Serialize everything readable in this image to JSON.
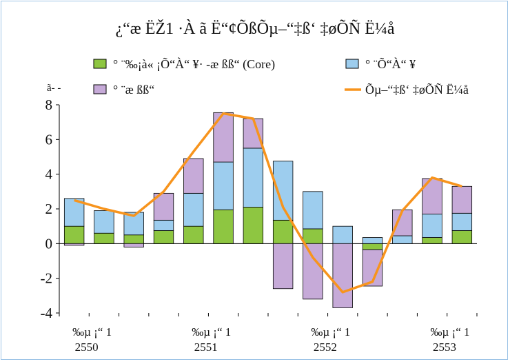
{
  "chart_data": {
    "type": "bar",
    "stacked": true,
    "title": "¿“æ ËŽ1 ·À ã Ë“¢ÕßÕµ–“‡ß‘ ‡øÕÑ Ë¼å",
    "ylabel": "ã- -",
    "ylim": [
      -4,
      8
    ],
    "yticks": [
      8,
      6,
      4,
      2,
      0,
      -2,
      -4
    ],
    "grid": false,
    "legend_position": "top",
    "x_groups": [
      {
        "quarter_label": "‰µ ¡“ 1",
        "year_label": "2550"
      },
      {
        "quarter_label": "‰µ ¡“ 1",
        "year_label": "2551"
      },
      {
        "quarter_label": "‰µ ¡“ 1",
        "year_label": "2552"
      },
      {
        "quarter_label": "‰µ ¡“ 1",
        "year_label": "2553"
      }
    ],
    "categories": [
      "2550Q1",
      "2550Q2",
      "2550Q3",
      "2550Q4",
      "2551Q1",
      "2551Q2",
      "2551Q3",
      "2551Q4",
      "2552Q1",
      "2552Q2",
      "2552Q3",
      "2552Q4",
      "2553Q1",
      "2553Q2"
    ],
    "series": [
      {
        "name": "° ¨‰¡à« ¡Õ“À“ ¥· -æ ßß“ (Core)",
        "color": "#8ec641",
        "values": [
          1.0,
          0.6,
          0.5,
          0.75,
          1.0,
          1.95,
          2.1,
          1.35,
          0.85,
          0.0,
          -0.35,
          0.0,
          0.35,
          0.75
        ]
      },
      {
        "name": "° ¨Õ“À“ ¥",
        "color": "#9dcdee",
        "values": [
          1.6,
          1.3,
          1.3,
          0.6,
          1.9,
          2.75,
          3.4,
          3.4,
          2.15,
          1.0,
          0.35,
          0.45,
          1.35,
          1.0
        ]
      },
      {
        "name": "° ¨æ ßß“",
        "color": "#c6aad8",
        "values": [
          -0.1,
          0.0,
          -0.2,
          1.55,
          2.0,
          2.85,
          1.7,
          -2.6,
          -3.2,
          -3.7,
          -2.1,
          1.5,
          2.05,
          1.55
        ]
      },
      {
        "name": "Õµ–“‡ß‘ ‡øÕÑ Ë¼å",
        "type": "line",
        "color": "#f7941d",
        "values": [
          2.5,
          2.0,
          1.6,
          3.0,
          5.3,
          7.5,
          7.2,
          2.1,
          -0.8,
          -2.8,
          -2.2,
          1.9,
          3.8,
          3.3
        ]
      }
    ]
  }
}
